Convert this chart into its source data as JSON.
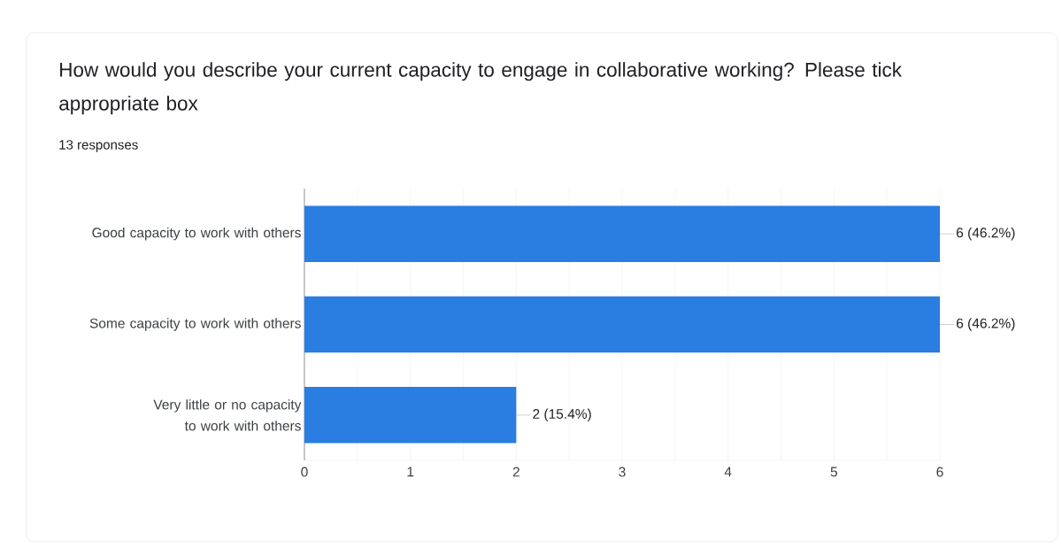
{
  "chart_data": {
    "type": "bar",
    "orientation": "horizontal",
    "title": "How would you describe your current capacity to engage in collaborative working? Please tick appropriate box",
    "subtitle": "13 responses",
    "categories": [
      "Good capacity to work with others",
      "Some capacity to work with others",
      "Very little or no capacity to work with others"
    ],
    "values": [
      6,
      6,
      2
    ],
    "value_labels": [
      "6 (46.2%)",
      "6 (46.2%)",
      "2 (15.4%)"
    ],
    "color": "#2a7de1",
    "xlim": [
      0,
      6
    ],
    "xticks": [
      0,
      {
        "value": 0.5,
        "label": null
      },
      1,
      {
        "value": 1.5,
        "label": null
      },
      2,
      {
        "value": 2.5,
        "label": null
      },
      3,
      {
        "value": 3.5,
        "label": null
      },
      4,
      {
        "value": 4.5,
        "label": null
      },
      5,
      {
        "value": 5.5,
        "label": null
      },
      6
    ],
    "grid": "x"
  }
}
